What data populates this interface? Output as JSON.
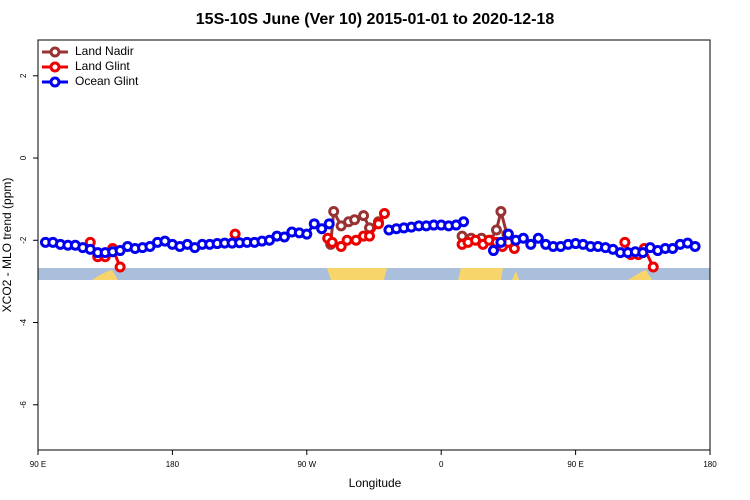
{
  "chart_data": {
    "type": "line",
    "title": "15S-10S June (Ver 10)   2015-01-01 to 2020-12-18",
    "x_label": "Longitude",
    "y_label": "XCO2 - MLO trend (ppm)",
    "xlim": [
      90,
      540
    ],
    "xticks": [
      {
        "value": 90,
        "label": "90 E"
      },
      {
        "value": 180,
        "label": "180"
      },
      {
        "value": 270,
        "label": "90 W"
      },
      {
        "value": 360,
        "label": "0"
      },
      {
        "value": 450,
        "label": "90 E"
      },
      {
        "value": 540,
        "label": "180"
      }
    ],
    "ylim": [
      -7.1,
      2.87
    ],
    "yticks": [
      2,
      0,
      -2,
      -4,
      -6
    ],
    "legend": "top-left",
    "series": [
      {
        "name": "Land Nadir",
        "color": "#993333",
        "x": [
          286,
          288,
          293,
          298,
          302,
          308,
          312,
          318,
          350,
          374,
          380,
          387,
          393,
          397,
          400,
          404
        ],
        "values": [
          -2.1,
          -1.3,
          -1.65,
          -1.55,
          -1.5,
          -1.4,
          -1.7,
          -1.55,
          null,
          -1.9,
          -1.95,
          -1.95,
          -2.0,
          -1.75,
          -1.3,
          -1.85
        ]
      },
      {
        "name": "Land Glint",
        "color": "#ee0000",
        "x": [
          125,
          130,
          135,
          140,
          145,
          180,
          222,
          250,
          284,
          287,
          293,
          297,
          303,
          308,
          312,
          318,
          322,
          350,
          374,
          378,
          383,
          388,
          392,
          397,
          401,
          405,
          409,
          450,
          483,
          487,
          492,
          496,
          502
        ],
        "values": [
          -2.05,
          -2.4,
          -2.4,
          -2.2,
          -2.65,
          null,
          -1.85,
          null,
          -1.95,
          -2.05,
          -2.15,
          -2.0,
          -2.0,
          -1.9,
          -1.9,
          -1.6,
          -1.35,
          null,
          -2.1,
          -2.05,
          -2.0,
          -2.1,
          -2.0,
          -2.05,
          -2.15,
          -2.05,
          -2.2,
          null,
          -2.05,
          -2.35,
          -2.35,
          -2.2,
          -2.65
        ]
      },
      {
        "name": "Ocean Glint",
        "color": "#0000ee",
        "x": [
          95,
          100,
          105,
          110,
          115,
          120,
          125,
          130,
          135,
          140,
          145,
          150,
          155,
          160,
          165,
          170,
          175,
          180,
          185,
          190,
          195,
          200,
          205,
          210,
          215,
          220,
          225,
          230,
          235,
          240,
          245,
          250,
          255,
          260,
          265,
          270,
          275,
          280,
          285,
          305,
          325,
          330,
          335,
          340,
          345,
          350,
          355,
          360,
          365,
          370,
          375,
          385,
          395,
          400,
          405,
          410,
          415,
          420,
          425,
          430,
          435,
          440,
          445,
          450,
          455,
          460,
          465,
          470,
          475,
          480,
          485,
          490,
          495,
          500,
          505,
          510,
          515,
          520,
          525,
          530
        ],
        "values": [
          -2.05,
          -2.05,
          -2.1,
          -2.12,
          -2.12,
          -2.18,
          -2.22,
          -2.3,
          -2.3,
          -2.28,
          -2.25,
          -2.15,
          -2.2,
          -2.18,
          -2.15,
          -2.05,
          -2.02,
          -2.1,
          -2.15,
          -2.1,
          -2.18,
          -2.1,
          -2.1,
          -2.08,
          -2.07,
          -2.07,
          -2.06,
          -2.05,
          -2.05,
          -2.02,
          -2.0,
          -1.9,
          -1.92,
          -1.8,
          -1.82,
          -1.85,
          -1.6,
          -1.72,
          -1.6,
          null,
          -1.75,
          -1.72,
          -1.7,
          -1.68,
          -1.65,
          -1.65,
          -1.63,
          -1.63,
          -1.65,
          -1.63,
          -1.55,
          null,
          -2.25,
          -2.05,
          -1.85,
          -2.0,
          -1.95,
          -2.1,
          -1.95,
          -2.1,
          -2.15,
          -2.15,
          -2.1,
          -2.08,
          -2.1,
          -2.15,
          -2.15,
          -2.18,
          -2.22,
          -2.3,
          -2.3,
          -2.28,
          -2.3,
          -2.18,
          -2.25,
          -2.2,
          -2.2,
          -2.1,
          -2.07,
          -2.15
        ]
      }
    ]
  }
}
